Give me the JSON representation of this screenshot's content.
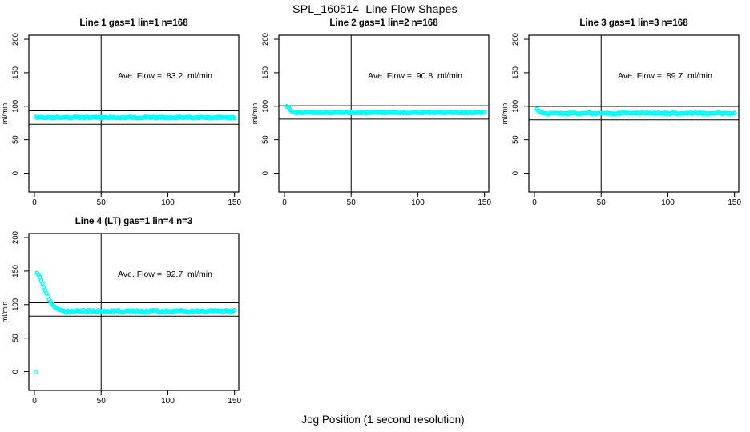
{
  "figure": {
    "title": "SPL_160514  Line Flow Shapes",
    "xlabel": "Jog Position (1 second resolution)",
    "background_color": "#FFFFFF",
    "axis_color": "#000000",
    "marker_color": "#00FFFF"
  },
  "chart_data": {
    "type": "scatter",
    "title": "SPL_160514  Line Flow Shapes",
    "xlabel": "Jog Position (1 second resolution)",
    "ylabel": "ml/min",
    "legend": "none",
    "grid": false,
    "layout": "4 panels: 3 in top row, 1 in bottom-left",
    "shared": {
      "xlim": [
        -4.2,
        153.2
      ],
      "ylim": [
        -28,
        206
      ],
      "xticks": [
        0,
        50,
        100,
        150
      ],
      "yticks": [
        0,
        50,
        100,
        150,
        200
      ],
      "ylabel": "ml/min",
      "vline_x": 50,
      "marker": "open-circle",
      "marker_color": "#00FFFF"
    },
    "panels": [
      {
        "title": "Line 1 gas=1 lin=1 n=168",
        "ave_flow_label": "Ave. Flow =  83.2  ml/min",
        "ave_flow": 83.2,
        "hline_upper": 93.2,
        "hline_lower": 73.2,
        "vline_x": 50,
        "transient_points": [],
        "steady": {
          "x_start": 1,
          "x_end": 150,
          "x_step": 1,
          "y": 83.2,
          "jitter": 1.1
        }
      },
      {
        "title": "Line 2 gas=1 lin=2 n=168",
        "ave_flow_label": "Ave. Flow =  90.8  ml/min",
        "ave_flow": 90.8,
        "hline_upper": 100.8,
        "hline_lower": 80.8,
        "vline_x": 50,
        "transient_points": [
          [
            2,
            100
          ],
          [
            3,
            98.5
          ],
          [
            4,
            96
          ],
          [
            5,
            93.5
          ],
          [
            6,
            92
          ],
          [
            7,
            91.2
          ]
        ],
        "steady": {
          "x_start": 8,
          "x_end": 150,
          "x_step": 1,
          "y": 90.4,
          "jitter": 0.9
        }
      },
      {
        "title": "Line 3 gas=1 lin=3 n=168",
        "ave_flow_label": "Ave. Flow =  89.7  ml/min",
        "ave_flow": 89.7,
        "hline_upper": 99.7,
        "hline_lower": 79.7,
        "vline_x": 50,
        "transient_points": [
          [
            2,
            95.5
          ],
          [
            3,
            93.5
          ],
          [
            4,
            92
          ],
          [
            5,
            90.8
          ]
        ],
        "steady": {
          "x_start": 6,
          "x_end": 150,
          "x_step": 1,
          "y": 89.5,
          "jitter": 0.9
        }
      },
      {
        "title": "Line 4 (LT) gas=1 lin=4 n=3",
        "ave_flow_label": "Ave. Flow =  92.7  ml/min",
        "ave_flow": 92.7,
        "hline_upper": 102.7,
        "hline_lower": 82.7,
        "vline_x": 50,
        "transient_points": [
          [
            1,
            -1
          ],
          [
            2,
            147
          ],
          [
            3,
            144.5
          ],
          [
            4,
            141
          ],
          [
            5,
            136.5
          ],
          [
            6,
            131.5
          ],
          [
            7,
            126.5
          ],
          [
            8,
            121.5
          ],
          [
            9,
            116.5
          ],
          [
            10,
            112
          ],
          [
            11,
            108
          ],
          [
            12,
            104.5
          ],
          [
            13,
            101.5
          ],
          [
            14,
            99
          ],
          [
            15,
            97
          ],
          [
            16,
            95.5
          ],
          [
            17,
            94.3
          ],
          [
            18,
            93.3
          ],
          [
            19,
            92.5
          ],
          [
            20,
            91.8
          ],
          [
            21,
            91.3
          ],
          [
            22,
            90.9
          ]
        ],
        "steady": {
          "x_start": 23,
          "x_end": 150,
          "x_step": 1,
          "y": 90.2,
          "jitter": 1.5
        }
      }
    ]
  }
}
